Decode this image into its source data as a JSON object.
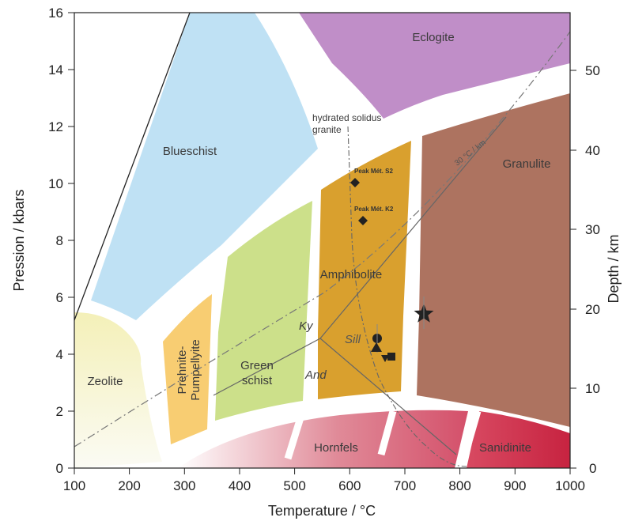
{
  "axes": {
    "x_title": "Temperature / °C",
    "y_left_title": "Pression / kbars",
    "y_right_title": "Depth / km",
    "x_ticks": [
      "100",
      "200",
      "300",
      "400",
      "500",
      "600",
      "700",
      "800",
      "900",
      "1000"
    ],
    "y_left_ticks": [
      "0",
      "2",
      "4",
      "6",
      "8",
      "10",
      "12",
      "14",
      "16"
    ],
    "y_right_ticks": [
      "0",
      "10",
      "20",
      "30",
      "40",
      "50"
    ]
  },
  "facies": {
    "eclogite": "Eclogite",
    "blueschist": "Blueschist",
    "granulite": "Granulite",
    "amphibolite": "Amphibolite",
    "zeolite": "Zeolite",
    "prehnite_1": "Prehnite-",
    "prehnite_2": "Pumpellyite",
    "greenschist_1": "Green",
    "greenschist_2": "schist",
    "hornfels": "Hornfels",
    "sanidinite": "Sanidinite"
  },
  "annotations": {
    "solidus_1": "hydrated solidus",
    "solidus_2": "granite",
    "geotherm": "30 °C / km",
    "ky": "Ky",
    "sill": "Sill",
    "and": "And",
    "peak_1": "Peak Mét. S2",
    "peak_2": "Peak Mét. K2"
  },
  "colors": {
    "eclogite": "#c08ec8",
    "blueschist": "#bfe1f4",
    "granulite": "#ad7360",
    "amphibolite": "#d9a02e",
    "greenschist": "#cce08a",
    "prehnite": "#f8cd72",
    "zeolite": "#f7f4c4",
    "hornfels": "#d95a6e",
    "sanidinite": "#cc3248"
  }
}
